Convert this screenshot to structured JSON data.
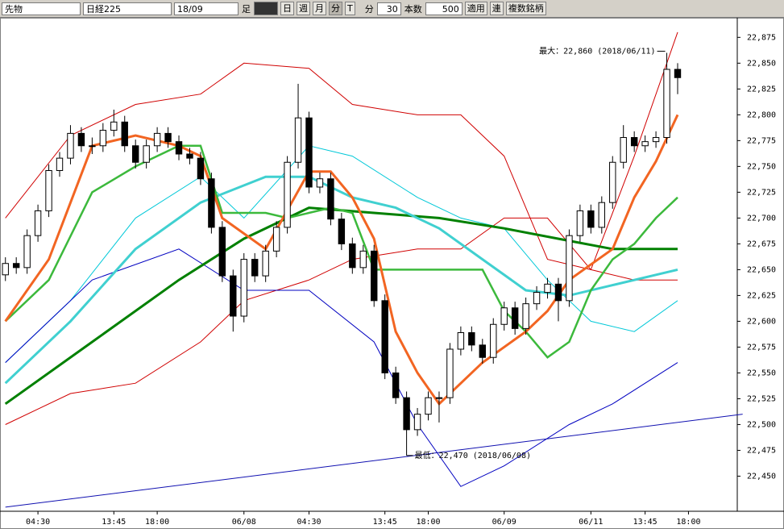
{
  "toolbar": {
    "product": "先物",
    "index": "日経225",
    "contract": "18/09",
    "bar_label": "足",
    "day": "日",
    "week": "週",
    "month": "月",
    "minute": "分",
    "tick": "T",
    "unit_label": "分",
    "interval": "30",
    "count_label": "本数",
    "count": "500",
    "apply": "適用",
    "link": "連",
    "multi": "複数銘柄"
  },
  "chart_data": {
    "type": "candlestick",
    "candles": [
      [
        22645,
        22662,
        22639,
        22656
      ],
      [
        22656,
        22662,
        22646,
        22652
      ],
      [
        22652,
        22689,
        22646,
        22683
      ],
      [
        22683,
        22713,
        22677,
        22707
      ],
      [
        22707,
        22752,
        22701,
        22746
      ],
      [
        22746,
        22764,
        22740,
        22758
      ],
      [
        22758,
        22790,
        22752,
        22782
      ],
      [
        22782,
        22788,
        22764,
        22770
      ],
      [
        22770,
        22778,
        22762,
        22770
      ],
      [
        22770,
        22792,
        22764,
        22785
      ],
      [
        22785,
        22805,
        22779,
        22793
      ],
      [
        22793,
        22799,
        22764,
        22770
      ],
      [
        22770,
        22776,
        22748,
        22754
      ],
      [
        22754,
        22776,
        22748,
        22770
      ],
      [
        22770,
        22788,
        22764,
        22782
      ],
      [
        22782,
        22788,
        22768,
        22774
      ],
      [
        22774,
        22780,
        22756,
        22762
      ],
      [
        22762,
        22768,
        22752,
        22758
      ],
      [
        22758,
        22764,
        22732,
        22738
      ],
      [
        22738,
        22744,
        22685,
        22691
      ],
      [
        22691,
        22697,
        22638,
        22644
      ],
      [
        22644,
        22650,
        22590,
        22605
      ],
      [
        22605,
        22666,
        22599,
        22660
      ],
      [
        22660,
        22666,
        22638,
        22644
      ],
      [
        22644,
        22674,
        22638,
        22668
      ],
      [
        22668,
        22697,
        22662,
        22691
      ],
      [
        22691,
        22760,
        22685,
        22754
      ],
      [
        22754,
        22830,
        22748,
        22797
      ],
      [
        22797,
        22803,
        22724,
        22730
      ],
      [
        22730,
        22744,
        22724,
        22738
      ],
      [
        22738,
        22744,
        22693,
        22699
      ],
      [
        22699,
        22705,
        22669,
        22675
      ],
      [
        22675,
        22681,
        22646,
        22652
      ],
      [
        22652,
        22674,
        22646,
        22668
      ],
      [
        22668,
        22674,
        22614,
        22620
      ],
      [
        22620,
        22626,
        22544,
        22550
      ],
      [
        22550,
        22556,
        22520,
        22526
      ],
      [
        22526,
        22532,
        22470,
        22495
      ],
      [
        22495,
        22516,
        22489,
        22510
      ],
      [
        22510,
        22532,
        22504,
        22526
      ],
      [
        22526,
        22532,
        22502,
        22526
      ],
      [
        22526,
        22579,
        22520,
        22573
      ],
      [
        22573,
        22595,
        22567,
        22589
      ],
      [
        22589,
        22595,
        22571,
        22577
      ],
      [
        22577,
        22583,
        22559,
        22565
      ],
      [
        22565,
        22603,
        22559,
        22597
      ],
      [
        22597,
        22619,
        22591,
        22613
      ],
      [
        22613,
        22619,
        22587,
        22593
      ],
      [
        22593,
        22623,
        22587,
        22617
      ],
      [
        22617,
        22634,
        22611,
        22628
      ],
      [
        22628,
        22642,
        22622,
        22636
      ],
      [
        22636,
        22642,
        22600,
        22620
      ],
      [
        22620,
        22689,
        22614,
        22683
      ],
      [
        22683,
        22713,
        22677,
        22707
      ],
      [
        22707,
        22713,
        22685,
        22691
      ],
      [
        22691,
        22721,
        22685,
        22715
      ],
      [
        22715,
        22760,
        22709,
        22754
      ],
      [
        22754,
        22790,
        22748,
        22778
      ],
      [
        22778,
        22784,
        22764,
        22770
      ],
      [
        22770,
        22780,
        22764,
        22774
      ],
      [
        22774,
        22784,
        22768,
        22778
      ],
      [
        22778,
        22860,
        22772,
        22844
      ],
      [
        22844,
        22850,
        22820,
        22836
      ]
    ],
    "lines": [
      {
        "color": "#00c8d8",
        "width": 1,
        "x": [
          0,
          6,
          12,
          18,
          22,
          28,
          32,
          38,
          42,
          46,
          50,
          54,
          58,
          62
        ],
        "values": [
          22560,
          22620,
          22700,
          22740,
          22700,
          22770,
          22760,
          22720,
          22700,
          22690,
          22640,
          22600,
          22590,
          22620
        ]
      },
      {
        "color": "#d00000",
        "width": 1,
        "x": [
          0,
          6,
          12,
          18,
          22,
          28,
          32,
          38,
          42,
          46,
          50,
          54,
          58,
          62
        ],
        "values": [
          22700,
          22780,
          22810,
          22820,
          22850,
          22845,
          22810,
          22800,
          22800,
          22760,
          22660,
          22650,
          22760,
          22880
        ]
      },
      {
        "color": "#d00000",
        "width": 1,
        "x": [
          0,
          6,
          12,
          18,
          22,
          28,
          32,
          38,
          42,
          46,
          50,
          54,
          58,
          62
        ],
        "values": [
          22500,
          22530,
          22540,
          22580,
          22620,
          22640,
          22660,
          22670,
          22670,
          22700,
          22700,
          22650,
          22640,
          22640
        ]
      },
      {
        "color": "#0000c0",
        "width": 1,
        "x": [
          0,
          8,
          16,
          22,
          28,
          34,
          38,
          42,
          46,
          52,
          56,
          62
        ],
        "values": [
          22560,
          22640,
          22670,
          22630,
          22630,
          22580,
          22500,
          22440,
          22460,
          22500,
          22520,
          22560
        ]
      },
      {
        "color": "#1010b0",
        "width": 1,
        "x": [
          0,
          68
        ],
        "values": [
          22420,
          22510
        ]
      },
      {
        "color": "#008000",
        "width": 3,
        "x": [
          0,
          8,
          16,
          22,
          28,
          34,
          40,
          46,
          52,
          56,
          62
        ],
        "values": [
          22520,
          22580,
          22640,
          22680,
          22710,
          22705,
          22700,
          22690,
          22678,
          22670,
          22670
        ]
      },
      {
        "color": "#40d0d0",
        "width": 3,
        "x": [
          0,
          6,
          12,
          18,
          24,
          28,
          32,
          36,
          40,
          44,
          48,
          52,
          56,
          60,
          62
        ],
        "values": [
          22540,
          22600,
          22670,
          22715,
          22740,
          22740,
          22720,
          22710,
          22690,
          22660,
          22630,
          22625,
          22635,
          22645,
          22650
        ]
      },
      {
        "color": "#3cb93c",
        "width": 2.5,
        "x": [
          0,
          4,
          8,
          12,
          16,
          18,
          20,
          24,
          26,
          30,
          32,
          34,
          40,
          44,
          46,
          48,
          50,
          52,
          54,
          56,
          58,
          60,
          62
        ],
        "values": [
          22600,
          22640,
          22725,
          22750,
          22770,
          22770,
          22705,
          22705,
          22700,
          22710,
          22705,
          22650,
          22650,
          22650,
          22610,
          22590,
          22565,
          22580,
          22630,
          22660,
          22675,
          22700,
          22720
        ]
      },
      {
        "color": "#f26522",
        "width": 3,
        "x": [
          0,
          4,
          8,
          12,
          16,
          18,
          20,
          24,
          28,
          30,
          32,
          34,
          36,
          38,
          40,
          44,
          48,
          50,
          52,
          56,
          58,
          60,
          62
        ],
        "values": [
          22600,
          22660,
          22770,
          22780,
          22770,
          22760,
          22700,
          22670,
          22745,
          22745,
          22720,
          22680,
          22590,
          22550,
          22520,
          22560,
          22590,
          22610,
          22640,
          22670,
          22720,
          22755,
          22800
        ]
      }
    ],
    "annotations": [
      "最大：22,860 (2018/06/11)",
      "最低：22,470 (2018/06/08)"
    ],
    "ylim": [
      22416,
      22894
    ],
    "yticks": [
      {
        "value": 22450,
        "label": "22,450"
      },
      {
        "value": 22475,
        "label": "22,475"
      },
      {
        "value": 22500,
        "label": "22,500"
      },
      {
        "value": 22525,
        "label": "22,525"
      },
      {
        "value": 22550,
        "label": "22,550"
      },
      {
        "value": 22575,
        "label": "22,575"
      },
      {
        "value": 22600,
        "label": "22,600"
      },
      {
        "value": 22625,
        "label": "22,625"
      },
      {
        "value": 22650,
        "label": "22,650"
      },
      {
        "value": 22675,
        "label": "22,675"
      },
      {
        "value": 22700,
        "label": "22,700"
      },
      {
        "value": 22725,
        "label": "22,725"
      },
      {
        "value": 22750,
        "label": "22,750"
      },
      {
        "value": 22775,
        "label": "22,775"
      },
      {
        "value": 22800,
        "label": "22,800"
      },
      {
        "value": 22825,
        "label": "22,825"
      },
      {
        "value": 22850,
        "label": "22,850"
      },
      {
        "value": 22875,
        "label": "22,875"
      }
    ],
    "xlim": [
      -0.5,
      67.5
    ],
    "xticks": [
      {
        "value": 3,
        "label": "04:30"
      },
      {
        "value": 10,
        "label": "13:45"
      },
      {
        "value": 14,
        "label": "18:00"
      },
      {
        "value": 22,
        "label": "06/08"
      },
      {
        "value": 28,
        "label": "04:30"
      },
      {
        "value": 35,
        "label": "13:45"
      },
      {
        "value": 39,
        "label": "18:00"
      },
      {
        "value": 46,
        "label": "06/09"
      },
      {
        "value": 54,
        "label": "06/11"
      },
      {
        "value": 59,
        "label": "13:45"
      },
      {
        "value": 63,
        "label": "18:00"
      }
    ]
  }
}
